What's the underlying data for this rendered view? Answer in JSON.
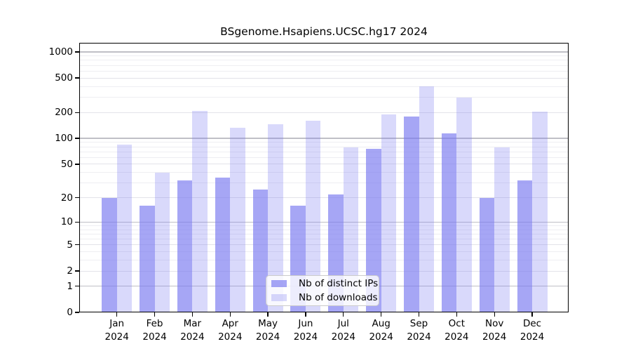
{
  "chart_data": {
    "type": "bar",
    "title": "BSgenome.Hsapiens.UCSC.hg17 2024",
    "categories": [
      "Jan",
      "Feb",
      "Mar",
      "Apr",
      "May",
      "Jun",
      "Jul",
      "Aug",
      "Sep",
      "Oct",
      "Nov",
      "Dec"
    ],
    "x_tick_year": "2024",
    "series": [
      {
        "name": "Nb of distinct IPs",
        "key": "ips",
        "color": "rgba(120,120,240,0.66)",
        "values": [
          20,
          16,
          32,
          35,
          25,
          16,
          22,
          75,
          180,
          115,
          20,
          32
        ]
      },
      {
        "name": "Nb of downloads",
        "key": "downloads",
        "color": "rgba(120,120,240,0.28)",
        "values": [
          85,
          40,
          208,
          133,
          145,
          160,
          79,
          190,
          400,
          295,
          78,
          203
        ]
      }
    ],
    "y_scale": "log1p",
    "ylim": [
      0,
      1270
    ],
    "y_ticks": [
      0,
      1,
      2,
      5,
      10,
      20,
      50,
      100,
      200,
      500,
      1000
    ],
    "y_major_grid_ticks": [
      1,
      10,
      100,
      1000
    ],
    "y_minor_ticks": [
      3,
      4,
      6,
      7,
      8,
      9,
      30,
      40,
      60,
      70,
      80,
      90,
      300,
      400,
      600,
      700,
      800,
      900
    ],
    "grid": "horizontal",
    "legend_position": "lower center inside",
    "colors": {
      "major_grid": "#bfbfc6",
      "labeled_grid": "#e3e3e9",
      "minor_grid": "#eeeef2",
      "axis": "#000000"
    }
  }
}
